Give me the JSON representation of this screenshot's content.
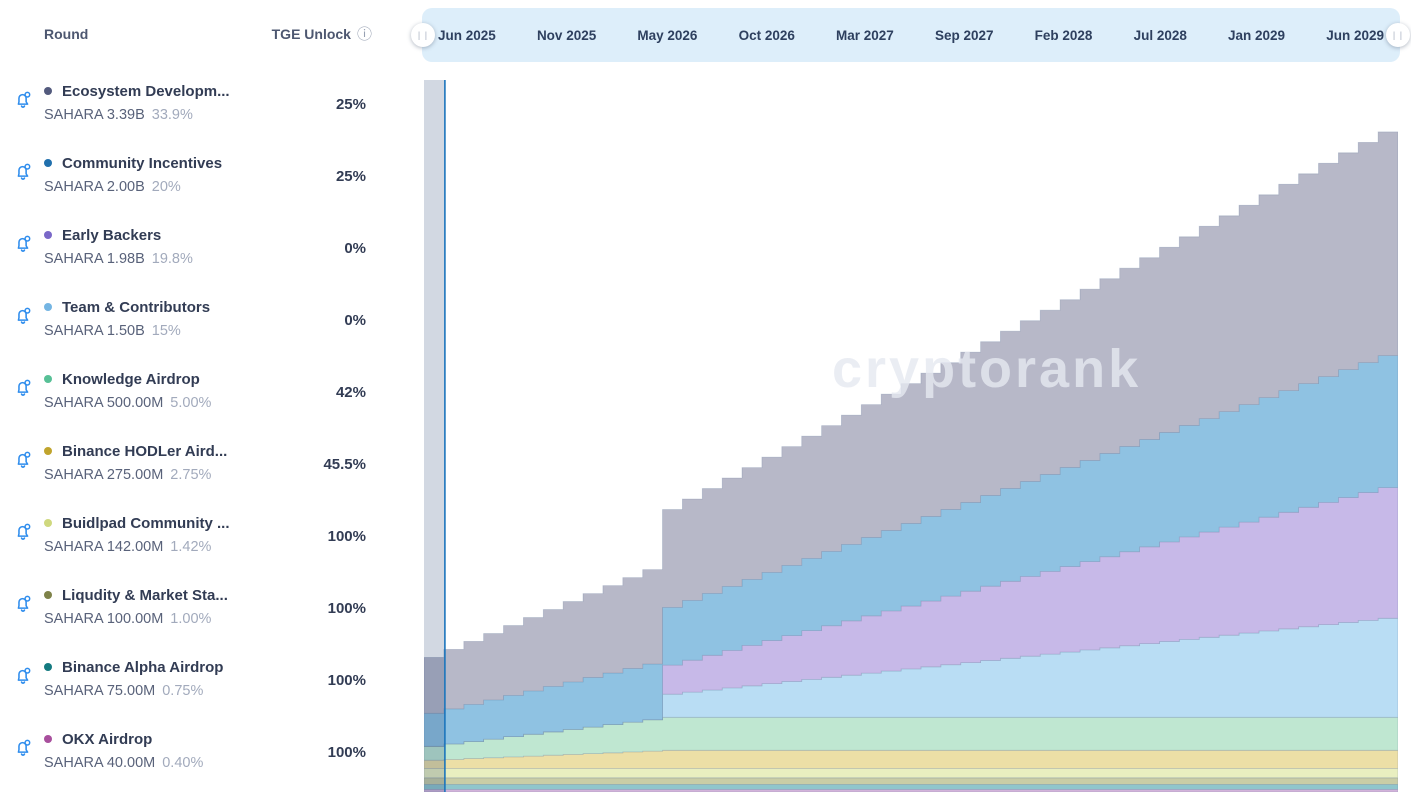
{
  "sidebar": {
    "col_round": "Round",
    "col_tge": "TGE Unlock",
    "info_icon": "ⓘ",
    "rows": [
      {
        "name": "Ecosystem Developm...",
        "amount": "SAHARA 3.39B",
        "share": "33.9%",
        "tge": "25%",
        "dot_color": "#535a7d"
      },
      {
        "name": "Community Incentives",
        "amount": "SAHARA 2.00B",
        "share": "20%",
        "tge": "25%",
        "dot_color": "#2170ad"
      },
      {
        "name": "Early Backers",
        "amount": "SAHARA 1.98B",
        "share": "19.8%",
        "tge": "0%",
        "dot_color": "#7a68c8"
      },
      {
        "name": "Team & Contributors",
        "amount": "SAHARA 1.50B",
        "share": "15%",
        "tge": "0%",
        "dot_color": "#74b5e3"
      },
      {
        "name": "Knowledge Airdrop",
        "amount": "SAHARA 500.00M",
        "share": "5.00%",
        "tge": "42%",
        "dot_color": "#57c096"
      },
      {
        "name": "Binance HODLer Aird...",
        "amount": "SAHARA 275.00M",
        "share": "2.75%",
        "tge": "45.5%",
        "dot_color": "#c0a42d"
      },
      {
        "name": "Buidlpad Community ...",
        "amount": "SAHARA 142.00M",
        "share": "1.42%",
        "tge": "100%",
        "dot_color": "#cfd87e"
      },
      {
        "name": "Liqudity & Market Sta...",
        "amount": "SAHARA 100.00M",
        "share": "1.00%",
        "tge": "100%",
        "dot_color": "#7e8249"
      },
      {
        "name": "Binance Alpha Airdrop",
        "amount": "SAHARA 75.00M",
        "share": "0.75%",
        "tge": "100%",
        "dot_color": "#147a80"
      },
      {
        "name": "OKX Airdrop",
        "amount": "SAHARA 40.00M",
        "share": "0.40%",
        "tge": "100%",
        "dot_color": "#a84f9d"
      }
    ]
  },
  "timeline": {
    "ticks": [
      "Jun 2025",
      "Nov 2025",
      "May 2026",
      "Oct 2026",
      "Mar 2027",
      "Sep 2027",
      "Feb 2028",
      "Jul 2028",
      "Jan 2029",
      "Jun 2029"
    ],
    "handle_glyph": "| |"
  },
  "watermark": "cryptorank",
  "chart_data": {
    "type": "area",
    "stacked": true,
    "stepped": true,
    "x_start": "Jun 2025",
    "x_end": "Jun 2029",
    "months": 49,
    "y_unit": "SAHARA tokens (billions), cumulative unlocked",
    "y_max": 10.0,
    "today_line_month": 1.05,
    "legend_position": "left-sidebar",
    "grid": false,
    "series_bottom_to_top": [
      {
        "name": "OKX Airdrop",
        "color": "#d2b3da",
        "constant": 0.04
      },
      {
        "name": "Binance Alpha Airdrop",
        "color": "#8fc6cc",
        "constant": 0.075
      },
      {
        "name": "Liqudity & Market Sta...",
        "color": "#c9cda6",
        "constant": 0.1
      },
      {
        "name": "Buidlpad Community ...",
        "color": "#e9efc0",
        "constant": 0.142
      },
      {
        "name": "Binance HODLer Aird...",
        "color": "#ecdfa6",
        "values": [
          0.125,
          0.1375,
          0.15,
          0.1625,
          0.175,
          0.1875,
          0.2,
          0.2125,
          0.225,
          0.2375,
          0.25,
          0.2625,
          0.275,
          0.275,
          0.275,
          0.275,
          0.275,
          0.275,
          0.275,
          0.275,
          0.275,
          0.275,
          0.275,
          0.275,
          0.275,
          0.275,
          0.275,
          0.275,
          0.275,
          0.275,
          0.275,
          0.275,
          0.275,
          0.275,
          0.275,
          0.275,
          0.275,
          0.275,
          0.275,
          0.275,
          0.275,
          0.275,
          0.275,
          0.275,
          0.275,
          0.275,
          0.275,
          0.275,
          0.275
        ]
      },
      {
        "name": "Knowledge Airdrop",
        "color": "#bfe7d1",
        "values": [
          0.21,
          0.2342,
          0.2583,
          0.2825,
          0.3067,
          0.3308,
          0.355,
          0.3792,
          0.4033,
          0.4275,
          0.4517,
          0.4758,
          0.5,
          0.5,
          0.5,
          0.5,
          0.5,
          0.5,
          0.5,
          0.5,
          0.5,
          0.5,
          0.5,
          0.5,
          0.5,
          0.5,
          0.5,
          0.5,
          0.5,
          0.5,
          0.5,
          0.5,
          0.5,
          0.5,
          0.5,
          0.5,
          0.5,
          0.5,
          0.5,
          0.5,
          0.5,
          0.5,
          0.5,
          0.5,
          0.5,
          0.5,
          0.5,
          0.5,
          0.5
        ]
      },
      {
        "name": "Team & Contributors",
        "color": "#b9ddf4",
        "values": [
          0,
          0,
          0,
          0,
          0,
          0,
          0,
          0,
          0,
          0,
          0,
          0,
          0.35,
          0.3819,
          0.4139,
          0.4458,
          0.4778,
          0.5097,
          0.5417,
          0.5736,
          0.6056,
          0.6375,
          0.6694,
          0.7014,
          0.7333,
          0.7653,
          0.7972,
          0.8292,
          0.8611,
          0.8931,
          0.925,
          0.9569,
          0.9889,
          1.0208,
          1.0528,
          1.0847,
          1.1167,
          1.1486,
          1.1806,
          1.2125,
          1.2444,
          1.2764,
          1.3083,
          1.3403,
          1.3722,
          1.4042,
          1.4361,
          1.4681,
          1.5
        ]
      },
      {
        "name": "Early Backers",
        "color": "#c7b9e8",
        "values": [
          0,
          0,
          0,
          0,
          0,
          0,
          0,
          0,
          0,
          0,
          0,
          0,
          0.44,
          0.4828,
          0.5256,
          0.5683,
          0.6111,
          0.6539,
          0.6967,
          0.7394,
          0.7822,
          0.825,
          0.8678,
          0.9106,
          0.9533,
          0.9961,
          1.0389,
          1.0817,
          1.1244,
          1.1672,
          1.21,
          1.2528,
          1.2956,
          1.3383,
          1.3811,
          1.4239,
          1.4667,
          1.5094,
          1.5522,
          1.595,
          1.6378,
          1.6806,
          1.7233,
          1.7661,
          1.8089,
          1.8517,
          1.8944,
          1.9372,
          1.98
        ]
      },
      {
        "name": "Community Incentives",
        "color": "#8fc2e2",
        "values": [
          0.5,
          0.5313,
          0.5625,
          0.5938,
          0.625,
          0.6563,
          0.6875,
          0.7188,
          0.75,
          0.7813,
          0.8125,
          0.8438,
          0.875,
          0.9063,
          0.9375,
          0.9688,
          1.0,
          1.0313,
          1.0625,
          1.0938,
          1.125,
          1.1563,
          1.1875,
          1.2188,
          1.25,
          1.2813,
          1.3125,
          1.3438,
          1.375,
          1.4063,
          1.4375,
          1.4688,
          1.5,
          1.5313,
          1.5625,
          1.5938,
          1.625,
          1.6563,
          1.6875,
          1.7188,
          1.75,
          1.7813,
          1.8125,
          1.8438,
          1.875,
          1.9063,
          1.9375,
          1.9688,
          2.0
        ]
      },
      {
        "name": "Ecosystem Developm...",
        "color": "#b7b8c8",
        "values": [
          0.8475,
          0.9005,
          0.9534,
          1.0064,
          1.0594,
          1.1123,
          1.1653,
          1.2183,
          1.2713,
          1.3242,
          1.3772,
          1.4302,
          1.4831,
          1.5361,
          1.5891,
          1.642,
          1.695,
          1.748,
          1.8009,
          1.8539,
          1.9069,
          1.9599,
          2.0128,
          2.0658,
          2.1188,
          2.1717,
          2.2247,
          2.2777,
          2.3306,
          2.3836,
          2.4366,
          2.4895,
          2.5425,
          2.5955,
          2.6485,
          2.7014,
          2.7544,
          2.8074,
          2.8603,
          2.9133,
          2.9663,
          3.0192,
          3.0722,
          3.1252,
          3.1781,
          3.2311,
          3.2841,
          3.337,
          3.39
        ]
      }
    ],
    "today_line_color": "#1b75bc",
    "past_overlay_color": "rgba(30,62,112,0.20)"
  }
}
